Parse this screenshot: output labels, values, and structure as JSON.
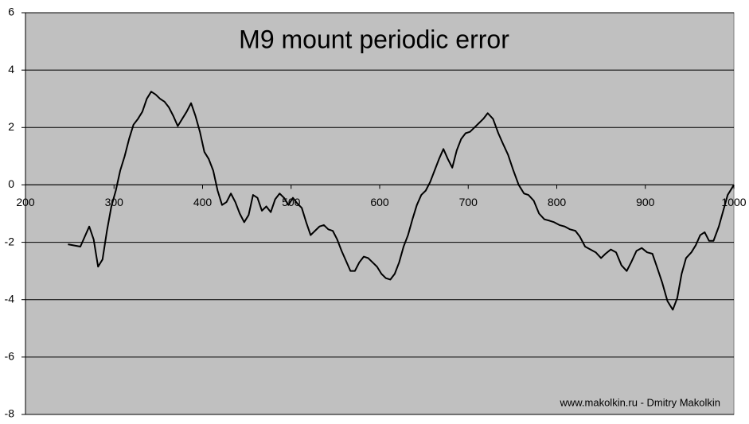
{
  "chart_data": {
    "type": "line",
    "title": "M9 mount periodic error",
    "annotation": "www.makolkin.ru - Dmitry Makolkin",
    "x": [
      248,
      262,
      267,
      272,
      277,
      282,
      287,
      292,
      297,
      302,
      307,
      312,
      317,
      322,
      327,
      332,
      337,
      342,
      347,
      352,
      357,
      362,
      367,
      372,
      377,
      382,
      387,
      392,
      397,
      402,
      407,
      412,
      417,
      422,
      427,
      432,
      437,
      442,
      447,
      452,
      457,
      462,
      467,
      472,
      477,
      482,
      487,
      492,
      497,
      502,
      507,
      512,
      517,
      522,
      527,
      532,
      537,
      542,
      547,
      552,
      557,
      562,
      567,
      572,
      577,
      582,
      587,
      592,
      597,
      602,
      607,
      612,
      617,
      622,
      627,
      632,
      637,
      642,
      647,
      652,
      657,
      662,
      667,
      672,
      677,
      682,
      687,
      692,
      697,
      702,
      707,
      712,
      717,
      722,
      728,
      734,
      739,
      745,
      751,
      757,
      763,
      768,
      774,
      780,
      786,
      792,
      797,
      803,
      809,
      815,
      821,
      826,
      832,
      838,
      844,
      850,
      855,
      861,
      867,
      873,
      879,
      884,
      890,
      896,
      902,
      908,
      913,
      919,
      925,
      931,
      936,
      941,
      946,
      952,
      957,
      962,
      967,
      972,
      977,
      983,
      988,
      993,
      998,
      1000
    ],
    "values": [
      -2.07,
      -2.15,
      -1.8,
      -1.45,
      -1.9,
      -2.85,
      -2.6,
      -1.6,
      -0.75,
      -0.2,
      0.5,
      1.0,
      1.6,
      2.1,
      2.3,
      2.55,
      3.0,
      3.25,
      3.15,
      3.0,
      2.9,
      2.7,
      2.4,
      2.05,
      2.3,
      2.55,
      2.85,
      2.4,
      1.85,
      1.15,
      0.9,
      0.5,
      -0.2,
      -0.7,
      -0.6,
      -0.3,
      -0.6,
      -1.0,
      -1.3,
      -1.05,
      -0.35,
      -0.45,
      -0.9,
      -0.75,
      -0.95,
      -0.5,
      -0.3,
      -0.45,
      -0.7,
      -0.45,
      -0.65,
      -0.8,
      -1.3,
      -1.75,
      -1.6,
      -1.45,
      -1.4,
      -1.55,
      -1.6,
      -1.9,
      -2.3,
      -2.65,
      -3.0,
      -3.0,
      -2.7,
      -2.5,
      -2.55,
      -2.7,
      -2.85,
      -3.1,
      -3.25,
      -3.3,
      -3.1,
      -2.7,
      -2.15,
      -1.75,
      -1.2,
      -0.7,
      -0.35,
      -0.2,
      0.1,
      0.5,
      0.9,
      1.25,
      0.9,
      0.6,
      1.2,
      1.6,
      1.8,
      1.85,
      2.0,
      2.15,
      2.3,
      2.5,
      2.3,
      1.8,
      1.45,
      1.05,
      0.5,
      0.0,
      -0.3,
      -0.35,
      -0.55,
      -1.0,
      -1.2,
      -1.25,
      -1.3,
      -1.4,
      -1.45,
      -1.55,
      -1.6,
      -1.8,
      -2.15,
      -2.25,
      -2.35,
      -2.55,
      -2.4,
      -2.25,
      -2.35,
      -2.8,
      -3.0,
      -2.7,
      -2.3,
      -2.2,
      -2.35,
      -2.4,
      -2.85,
      -3.4,
      -4.05,
      -4.35,
      -3.95,
      -3.1,
      -2.55,
      -2.35,
      -2.1,
      -1.75,
      -1.65,
      -1.95,
      -1.95,
      -1.45,
      -0.9,
      -0.35,
      -0.1,
      0
    ],
    "color": "#000000",
    "xlim": [
      200,
      1000
    ],
    "xticks": [
      200,
      300,
      400,
      500,
      600,
      700,
      800,
      900,
      1000
    ],
    "ylim": [
      -8,
      6
    ],
    "yticks": [
      -8,
      -6,
      -4,
      -2,
      0,
      2,
      4,
      6
    ],
    "grid": true,
    "plot_background": "#c0c0c0"
  }
}
